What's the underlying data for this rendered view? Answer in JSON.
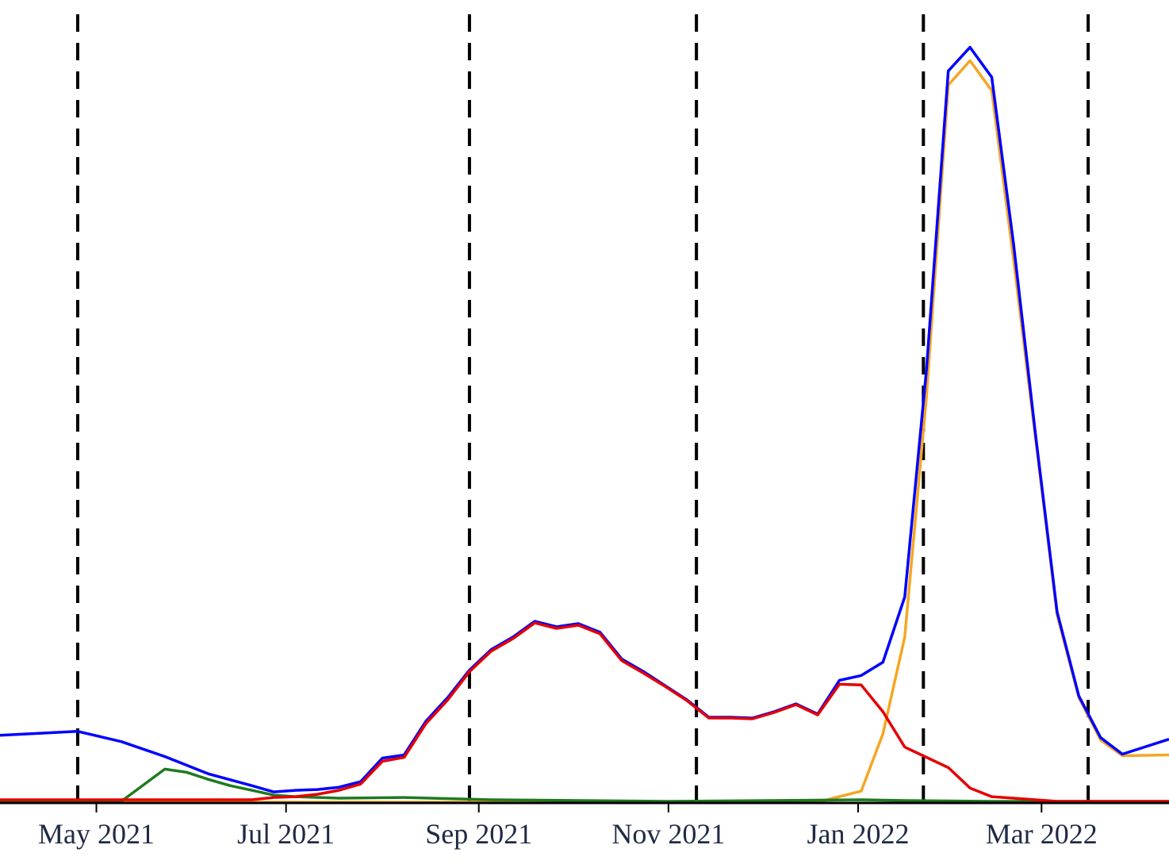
{
  "chart_data": {
    "type": "line",
    "grid": false,
    "legend": "none",
    "x_range": [
      "2021-03-31",
      "2022-04-11"
    ],
    "y_range": [
      0,
      100
    ],
    "x_ticks": [
      {
        "date": "2021-05-01",
        "label": "May 2021"
      },
      {
        "date": "2021-07-01",
        "label": "Jul 2021"
      },
      {
        "date": "2021-09-01",
        "label": "Sep 2021"
      },
      {
        "date": "2021-11-01",
        "label": "Nov 2021"
      },
      {
        "date": "2022-01-01",
        "label": "Jan 2022"
      },
      {
        "date": "2022-03-01",
        "label": "Mar 2022"
      }
    ],
    "reference_lines": {
      "style": "dashed",
      "color": "#000000",
      "dates": [
        "2021-04-25",
        "2021-08-29",
        "2021-11-10",
        "2022-01-22",
        "2022-03-16"
      ]
    },
    "series": [
      {
        "color": "#0000ff",
        "points": [
          [
            "2021-03-31",
            8.5
          ],
          [
            "2021-04-25",
            9.0
          ],
          [
            "2021-05-09",
            7.7
          ],
          [
            "2021-05-23",
            5.8
          ],
          [
            "2021-06-06",
            3.6
          ],
          [
            "2021-06-20",
            2.1
          ],
          [
            "2021-06-27",
            1.3
          ],
          [
            "2021-07-04",
            1.5
          ],
          [
            "2021-07-11",
            1.6
          ],
          [
            "2021-07-18",
            1.9
          ],
          [
            "2021-07-25",
            2.6
          ],
          [
            "2021-08-01",
            5.6
          ],
          [
            "2021-08-08",
            6.0
          ],
          [
            "2021-08-15",
            10.3
          ],
          [
            "2021-08-22",
            13.3
          ],
          [
            "2021-08-29",
            16.8
          ],
          [
            "2021-09-05",
            19.4
          ],
          [
            "2021-09-12",
            21.0
          ],
          [
            "2021-09-19",
            23.0
          ],
          [
            "2021-09-26",
            22.3
          ],
          [
            "2021-10-03",
            22.7
          ],
          [
            "2021-10-10",
            21.6
          ],
          [
            "2021-10-17",
            18.2
          ],
          [
            "2021-10-24",
            16.6
          ],
          [
            "2021-10-31",
            14.8
          ],
          [
            "2021-11-07",
            13.0
          ],
          [
            "2021-11-14",
            10.8
          ],
          [
            "2021-11-21",
            10.8
          ],
          [
            "2021-11-28",
            10.7
          ],
          [
            "2021-12-05",
            11.5
          ],
          [
            "2021-12-12",
            12.5
          ],
          [
            "2021-12-19",
            11.2
          ],
          [
            "2021-12-26",
            15.5
          ],
          [
            "2022-01-02",
            16.1
          ],
          [
            "2022-01-09",
            17.8
          ],
          [
            "2022-01-16",
            26.1
          ],
          [
            "2022-01-23",
            55.0
          ],
          [
            "2022-01-30",
            93.0
          ],
          [
            "2022-02-06",
            96.0
          ],
          [
            "2022-02-13",
            92.2
          ],
          [
            "2022-02-20",
            71.0
          ],
          [
            "2022-02-27",
            47.0
          ],
          [
            "2022-03-06",
            24.2
          ],
          [
            "2022-03-13",
            13.5
          ],
          [
            "2022-03-20",
            8.2
          ],
          [
            "2022-03-27",
            6.1
          ],
          [
            "2022-04-11",
            8.0
          ]
        ]
      },
      {
        "color": "#e60000",
        "points": [
          [
            "2021-03-31",
            0.3
          ],
          [
            "2021-04-25",
            0.3
          ],
          [
            "2021-05-23",
            0.3
          ],
          [
            "2021-06-20",
            0.3
          ],
          [
            "2021-06-27",
            0.6
          ],
          [
            "2021-07-04",
            0.7
          ],
          [
            "2021-07-11",
            1.0
          ],
          [
            "2021-07-18",
            1.5
          ],
          [
            "2021-07-25",
            2.3
          ],
          [
            "2021-08-01",
            5.2
          ],
          [
            "2021-08-08",
            5.7
          ],
          [
            "2021-08-15",
            10.0
          ],
          [
            "2021-08-22",
            13.0
          ],
          [
            "2021-08-29",
            16.6
          ],
          [
            "2021-09-05",
            19.2
          ],
          [
            "2021-09-12",
            20.8
          ],
          [
            "2021-09-19",
            22.8
          ],
          [
            "2021-09-26",
            22.1
          ],
          [
            "2021-10-03",
            22.5
          ],
          [
            "2021-10-10",
            21.4
          ],
          [
            "2021-10-17",
            18.0
          ],
          [
            "2021-10-24",
            16.4
          ],
          [
            "2021-10-31",
            14.7
          ],
          [
            "2021-11-07",
            12.9
          ],
          [
            "2021-11-14",
            10.7
          ],
          [
            "2021-11-21",
            10.7
          ],
          [
            "2021-11-28",
            10.6
          ],
          [
            "2021-12-05",
            11.4
          ],
          [
            "2021-12-12",
            12.4
          ],
          [
            "2021-12-19",
            11.1
          ],
          [
            "2021-12-26",
            15.0
          ],
          [
            "2022-01-02",
            14.9
          ],
          [
            "2022-01-09",
            11.5
          ],
          [
            "2022-01-16",
            7.0
          ],
          [
            "2022-01-23",
            5.7
          ],
          [
            "2022-01-30",
            4.4
          ],
          [
            "2022-02-06",
            1.8
          ],
          [
            "2022-02-13",
            0.7
          ],
          [
            "2022-02-20",
            0.5
          ],
          [
            "2022-03-06",
            0.1
          ],
          [
            "2022-04-11",
            0.1
          ]
        ]
      },
      {
        "color": "#1f7a1f",
        "points": [
          [
            "2021-03-31",
            0.1
          ],
          [
            "2021-05-09",
            0.1
          ],
          [
            "2021-05-23",
            4.2
          ],
          [
            "2021-05-30",
            3.8
          ],
          [
            "2021-06-06",
            2.9
          ],
          [
            "2021-06-13",
            2.1
          ],
          [
            "2021-06-20",
            1.5
          ],
          [
            "2021-06-27",
            0.9
          ],
          [
            "2021-07-04",
            0.7
          ],
          [
            "2021-07-18",
            0.5
          ],
          [
            "2021-08-08",
            0.6
          ],
          [
            "2021-09-05",
            0.3
          ],
          [
            "2021-11-01",
            0.1
          ],
          [
            "2022-01-02",
            0.3
          ],
          [
            "2022-01-16",
            0.2
          ],
          [
            "2022-02-13",
            0.1
          ],
          [
            "2022-04-11",
            0.1
          ]
        ]
      },
      {
        "color": "#f5a623",
        "points": [
          [
            "2021-03-31",
            0.0
          ],
          [
            "2021-12-19",
            0.0
          ],
          [
            "2022-01-02",
            1.4
          ],
          [
            "2022-01-09",
            8.7
          ],
          [
            "2022-01-16",
            21.0
          ],
          [
            "2022-01-23",
            51.6
          ],
          [
            "2022-01-30",
            91.2
          ],
          [
            "2022-02-06",
            94.3
          ],
          [
            "2022-02-13",
            90.5
          ],
          [
            "2022-02-20",
            69.0
          ],
          [
            "2022-02-27",
            46.5
          ],
          [
            "2022-03-06",
            23.8
          ],
          [
            "2022-03-13",
            13.3
          ],
          [
            "2022-03-20",
            7.9
          ],
          [
            "2022-03-27",
            5.9
          ],
          [
            "2022-04-11",
            6.0
          ]
        ]
      }
    ]
  }
}
